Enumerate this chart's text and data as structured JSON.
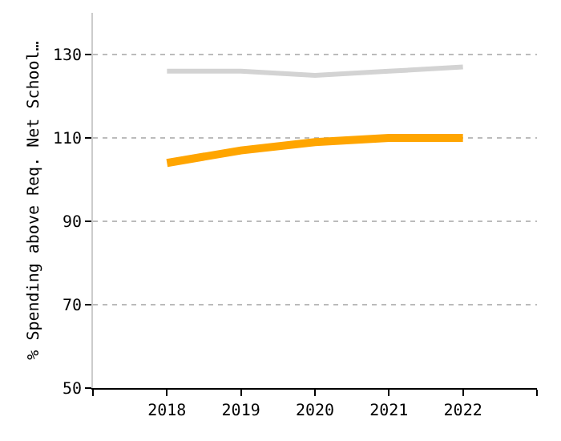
{
  "chart_data": {
    "type": "line",
    "ylabel": "% Spending above Req. Net School…",
    "x": [
      2018,
      2019,
      2020,
      2021,
      2022
    ],
    "series": [
      {
        "color": "#d3d3d3",
        "values": [
          126,
          126,
          125,
          126,
          127
        ]
      },
      {
        "color": "#ffa500",
        "values": [
          104,
          107,
          109,
          110,
          110
        ]
      }
    ],
    "xlim": [
      2017,
      2023
    ],
    "xticks": [
      {
        "value": 2017,
        "label": null
      },
      2018,
      2019,
      2020,
      2021,
      2022,
      {
        "value": 2023,
        "label": null
      }
    ],
    "ylim": [
      50,
      140
    ],
    "yticks": [
      50,
      70,
      90,
      110,
      130
    ],
    "grid": "y",
    "marker": "none",
    "line_style": "solid"
  }
}
